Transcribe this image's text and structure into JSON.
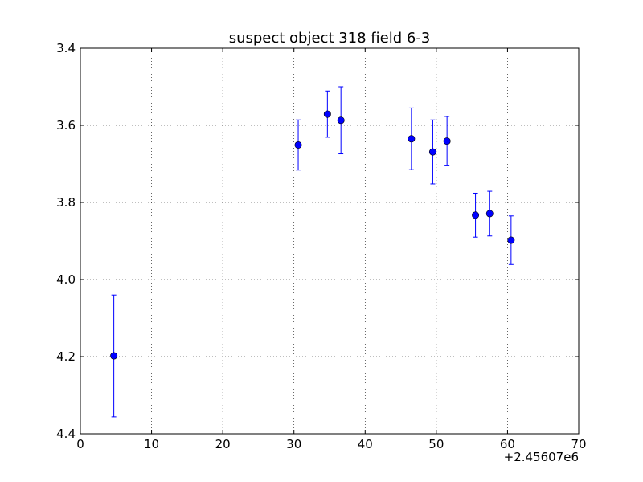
{
  "chart_data": {
    "type": "scatter",
    "title": "suspect object 318 field 6-3",
    "xlabel": "",
    "ylabel": "",
    "x_offset_label": "+2.45607e6",
    "xlim": [
      0,
      70
    ],
    "ylim": [
      4.4,
      3.4
    ],
    "y_inverted": true,
    "grid": true,
    "xticks": [
      0,
      10,
      20,
      30,
      40,
      50,
      60,
      70
    ],
    "yticks": [
      3.4,
      3.6,
      3.8,
      4.0,
      4.2,
      4.4
    ],
    "xtick_labels": [
      "0",
      "10",
      "20",
      "30",
      "40",
      "50",
      "60",
      "70"
    ],
    "ytick_labels": [
      "3.4",
      "3.6",
      "3.8",
      "4.0",
      "4.2",
      "4.4"
    ],
    "series": [
      {
        "marker_color": "#0000ff",
        "points": [
          {
            "x": 4.7,
            "y": 4.198,
            "yerr": 0.158
          },
          {
            "x": 30.6,
            "y": 3.651,
            "yerr": 0.065
          },
          {
            "x": 34.7,
            "y": 3.571,
            "yerr": 0.06
          },
          {
            "x": 36.6,
            "y": 3.587,
            "yerr": 0.087
          },
          {
            "x": 46.5,
            "y": 3.635,
            "yerr": 0.08
          },
          {
            "x": 49.5,
            "y": 3.669,
            "yerr": 0.083
          },
          {
            "x": 51.5,
            "y": 3.641,
            "yerr": 0.064
          },
          {
            "x": 55.5,
            "y": 3.833,
            "yerr": 0.057
          },
          {
            "x": 57.5,
            "y": 3.829,
            "yerr": 0.058
          },
          {
            "x": 60.5,
            "y": 3.898,
            "yerr": 0.063
          }
        ]
      }
    ]
  }
}
